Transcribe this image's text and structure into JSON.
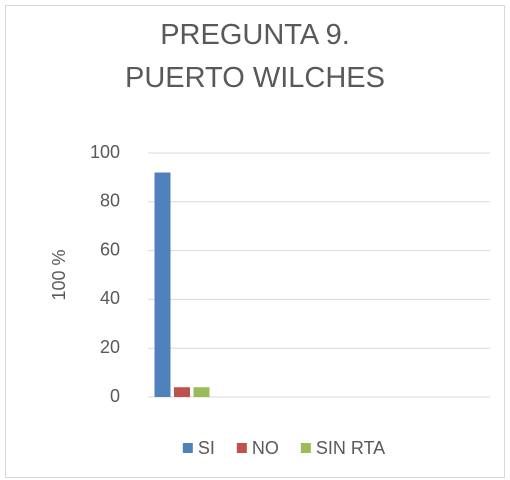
{
  "chart_data": {
    "type": "bar",
    "title": "PREGUNTA 9.\nPUERTO WILCHES",
    "y_label": "100 %",
    "categories": [
      null
    ],
    "series": [
      {
        "name": "SI",
        "color": "#4f81bd",
        "values": [
          92
        ]
      },
      {
        "name": "NO",
        "color": "#c0504d",
        "values": [
          4
        ]
      },
      {
        "name": "SIN RTA",
        "color": "#9bbb59",
        "values": [
          4
        ]
      }
    ],
    "ylim": [
      0,
      100
    ],
    "yticks": [
      0,
      20,
      40,
      60,
      80,
      100
    ],
    "grid": true,
    "legend": "bottom"
  }
}
